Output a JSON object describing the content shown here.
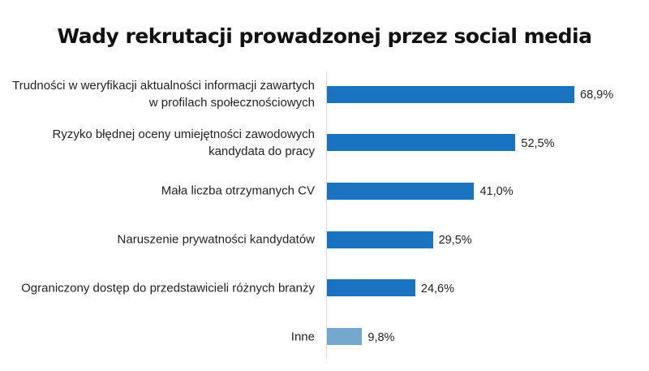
{
  "chart_data": {
    "type": "bar",
    "orientation": "horizontal",
    "title": "Wady rekrutacji prowadzonej przez social media",
    "categories": [
      "Trudności w weryfikacji aktualności informacji zawartych w profilach społecznościowych",
      "Ryzyko błędnej oceny umiejętności zawodowych kandydata do pracy",
      "Mała liczba otrzymanych CV",
      "Naruszenie prywatności kandydatów",
      "Ograniczony dostęp do przedstawicieli różnych branży",
      "Inne"
    ],
    "values": [
      68.9,
      52.5,
      41.0,
      29.5,
      24.6,
      9.8
    ],
    "value_labels": [
      "68,9%",
      "52,5%",
      "41,0%",
      "29,5%",
      "24,6%",
      "9,8%"
    ],
    "unit": "%",
    "grid": false,
    "colors": [
      "#1a73c0",
      "#1a73c0",
      "#1a73c0",
      "#1a73c0",
      "#1a73c0",
      "#74a8cc"
    ]
  }
}
